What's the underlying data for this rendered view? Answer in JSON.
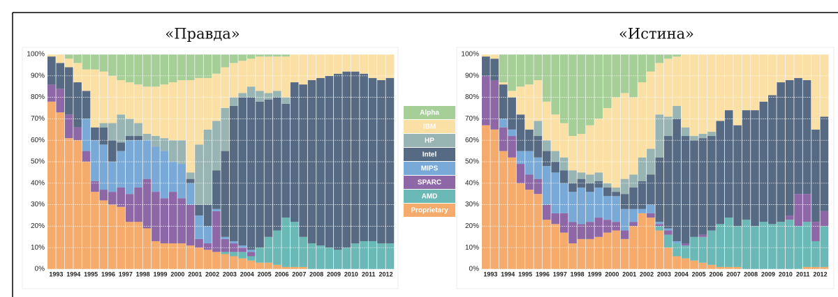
{
  "chart_data": [
    {
      "type": "bar",
      "stacked": true,
      "title": "«Правда»",
      "categories": [
        "1993",
        null,
        "1994",
        null,
        "1995",
        null,
        "1996",
        null,
        "1997",
        null,
        "1998",
        null,
        "1999",
        null,
        "2000",
        null,
        "2001",
        null,
        "2002",
        null,
        "2003",
        null,
        "2004",
        null,
        "2005",
        null,
        "2006",
        null,
        "2007",
        null,
        "2008",
        null,
        "2009",
        null,
        "2010",
        null,
        "2011",
        null,
        "2012",
        null
      ],
      "ylim": [
        0,
        100
      ],
      "yticks": [
        {
          "value": 0,
          "label": "0%"
        },
        {
          "value": 10,
          "label": "10%"
        },
        {
          "value": 20,
          "label": "20%"
        },
        {
          "value": 30,
          "label": "30%"
        },
        {
          "value": 40,
          "label": "40%"
        },
        {
          "value": 50,
          "label": "50%"
        },
        {
          "value": 60,
          "label": "60%"
        },
        {
          "value": 70,
          "label": "70%"
        },
        {
          "value": 80,
          "label": "80%"
        },
        {
          "value": 90,
          "label": "90%"
        },
        {
          "value": 100,
          "label": "100%"
        }
      ],
      "grid": true,
      "series": [
        {
          "name": "Proprietary",
          "color": "#f5ab6c",
          "values": [
            78,
            73,
            61,
            60,
            50,
            36,
            32,
            30,
            29,
            22,
            22,
            19,
            13,
            12,
            12,
            12,
            11,
            10,
            9,
            8,
            7,
            6,
            5,
            4,
            3,
            3,
            2,
            1,
            1,
            1,
            0,
            0,
            0,
            0,
            0,
            0,
            0,
            0,
            0,
            0
          ]
        },
        {
          "name": "AMD",
          "color": "#6ab9b6",
          "values": [
            0,
            0,
            0,
            0,
            0,
            0,
            0,
            0,
            0,
            0,
            0,
            0,
            0,
            0,
            0,
            0,
            0,
            0,
            0,
            0,
            1,
            2,
            3,
            2,
            7,
            12,
            16,
            23,
            21,
            14,
            12,
            11,
            10,
            9,
            10,
            12,
            13,
            13,
            12,
            12
          ]
        },
        {
          "name": "SPARC",
          "color": "#8e68a6",
          "values": [
            8,
            11,
            11,
            6,
            5,
            5,
            5,
            6,
            9,
            13,
            16,
            23,
            23,
            21,
            24,
            21,
            19,
            4,
            3,
            19,
            6,
            4,
            2,
            2,
            0,
            0,
            0,
            0,
            0,
            0,
            0,
            0,
            0,
            0,
            0,
            0,
            0,
            0,
            0,
            0
          ]
        },
        {
          "name": "MIPS",
          "color": "#79a9d6",
          "values": [
            0,
            0,
            0,
            0,
            15,
            19,
            21,
            14,
            17,
            25,
            22,
            18,
            21,
            22,
            14,
            16,
            10,
            11,
            8,
            1,
            1,
            1,
            1,
            1,
            0,
            0,
            0,
            0,
            0,
            0,
            0,
            0,
            0,
            0,
            0,
            0,
            0,
            0,
            0,
            0
          ]
        },
        {
          "name": "Intel",
          "color": "#566b83",
          "values": [
            13,
            12,
            22,
            21,
            13,
            6,
            8,
            10,
            4,
            2,
            2,
            0,
            0,
            0,
            0,
            0,
            2,
            5,
            10,
            18,
            40,
            63,
            69,
            71,
            68,
            64,
            62,
            53,
            65,
            71,
            76,
            78,
            80,
            82,
            82,
            80,
            78,
            76,
            76,
            77
          ]
        },
        {
          "name": "HP",
          "color": "#98b5b3",
          "values": [
            0,
            0,
            0,
            0,
            0,
            0,
            2,
            8,
            13,
            8,
            6,
            3,
            5,
            6,
            10,
            11,
            3,
            28,
            35,
            23,
            20,
            4,
            2,
            5,
            5,
            3,
            3,
            3,
            0,
            0,
            0,
            0,
            0,
            0,
            0,
            0,
            0,
            0,
            0,
            0
          ]
        },
        {
          "name": "IBM",
          "color": "#fbe0a5",
          "values": [
            1,
            4,
            4,
            9,
            10,
            27,
            24,
            22,
            16,
            17,
            18,
            22,
            23,
            25,
            27,
            28,
            43,
            31,
            24,
            22,
            19,
            16,
            15,
            13,
            16,
            17,
            16,
            19,
            13,
            14,
            12,
            11,
            10,
            9,
            8,
            8,
            9,
            11,
            12,
            11
          ]
        },
        {
          "name": "Alpha",
          "color": "#a6cf98",
          "values": [
            0,
            0,
            2,
            4,
            7,
            7,
            8,
            10,
            12,
            13,
            14,
            15,
            15,
            14,
            13,
            12,
            12,
            11,
            11,
            9,
            6,
            4,
            3,
            2,
            1,
            1,
            1,
            1,
            0,
            0,
            0,
            0,
            0,
            0,
            0,
            0,
            0,
            0,
            0,
            0
          ]
        }
      ]
    },
    {
      "type": "bar",
      "stacked": true,
      "title": "«Истина»",
      "categories": [
        "1993",
        null,
        "1994",
        null,
        "1995",
        null,
        "1996",
        null,
        "1997",
        null,
        "1998",
        null,
        "1999",
        null,
        "2000",
        null,
        "2001",
        null,
        "2002",
        null,
        "2003",
        null,
        "2004",
        null,
        "2005",
        null,
        "2006",
        null,
        "2007",
        null,
        "2008",
        null,
        "2009",
        null,
        "2010",
        null,
        "2011",
        null,
        "2012",
        null
      ],
      "ylim": [
        0,
        100
      ],
      "yticks": [
        {
          "value": 0,
          "label": "0%"
        },
        {
          "value": 10,
          "label": "10%"
        },
        {
          "value": 20,
          "label": "20%"
        },
        {
          "value": 30,
          "label": "30%"
        },
        {
          "value": 40,
          "label": "40%"
        },
        {
          "value": 50,
          "label": "50%"
        },
        {
          "value": 60,
          "label": "60%"
        },
        {
          "value": 70,
          "label": "70%"
        },
        {
          "value": 80,
          "label": "80%"
        },
        {
          "value": 90,
          "label": "90%"
        },
        {
          "value": 100,
          "label": "100%"
        }
      ],
      "grid": true,
      "series": [
        {
          "name": "Proprietary",
          "color": "#f5ab6c",
          "values": [
            67,
            65,
            55,
            52,
            40,
            37,
            35,
            23,
            21,
            17,
            12,
            14,
            14,
            15,
            17,
            18,
            14,
            20,
            26,
            24,
            18,
            10,
            6,
            5,
            4,
            3,
            2,
            1,
            1,
            1,
            0,
            0,
            0,
            0,
            0,
            0,
            0,
            1,
            1,
            1
          ]
        },
        {
          "name": "AMD",
          "color": "#6ab9b6",
          "values": [
            0,
            0,
            0,
            0,
            0,
            0,
            0,
            0,
            0,
            0,
            0,
            0,
            0,
            0,
            0,
            0,
            0,
            0,
            0,
            0,
            2,
            6,
            6,
            6,
            11,
            12,
            16,
            20,
            23,
            19,
            23,
            20,
            22,
            21,
            22,
            23,
            20,
            21,
            12,
            19
          ]
        },
        {
          "name": "SPARC",
          "color": "#8e68a6",
          "values": [
            23,
            23,
            11,
            10,
            9,
            7,
            7,
            7,
            5,
            9,
            10,
            7,
            8,
            9,
            6,
            4,
            4,
            2,
            0,
            2,
            1,
            2,
            0,
            1,
            0,
            1,
            0,
            0,
            0,
            0,
            0,
            0,
            0,
            0,
            0,
            2,
            15,
            13,
            9,
            7
          ]
        },
        {
          "name": "MIPS",
          "color": "#79a9d6",
          "values": [
            0,
            0,
            4,
            3,
            6,
            11,
            10,
            18,
            19,
            14,
            14,
            17,
            14,
            14,
            11,
            12,
            10,
            6,
            2,
            4,
            1,
            1,
            1,
            0,
            0,
            0,
            0,
            0,
            0,
            0,
            0,
            0,
            0,
            0,
            0,
            0,
            0,
            0,
            0,
            0
          ]
        },
        {
          "name": "Intel",
          "color": "#566b83",
          "values": [
            9,
            10,
            16,
            15,
            17,
            10,
            10,
            7,
            5,
            6,
            4,
            4,
            4,
            3,
            4,
            2,
            7,
            10,
            13,
            14,
            30,
            43,
            57,
            50,
            45,
            45,
            44,
            48,
            50,
            47,
            51,
            54,
            56,
            60,
            65,
            63,
            54,
            53,
            43,
            44
          ]
        },
        {
          "name": "HP",
          "color": "#98b5b3",
          "values": [
            0,
            0,
            0,
            0,
            0,
            0,
            7,
            5,
            5,
            6,
            6,
            3,
            4,
            4,
            2,
            2,
            7,
            6,
            11,
            12,
            20,
            9,
            6,
            4,
            2,
            2,
            2,
            0,
            0,
            0,
            0,
            0,
            0,
            0,
            0,
            0,
            0,
            0,
            0,
            0
          ]
        },
        {
          "name": "IBM",
          "color": "#fbe0a5",
          "values": [
            1,
            2,
            1,
            3,
            13,
            21,
            19,
            18,
            17,
            16,
            16,
            18,
            23,
            25,
            35,
            42,
            40,
            36,
            35,
            36,
            24,
            27,
            23,
            34,
            38,
            37,
            36,
            31,
            26,
            33,
            26,
            26,
            22,
            19,
            13,
            12,
            11,
            12,
            35,
            29
          ]
        },
        {
          "name": "Alpha",
          "color": "#a6cf98",
          "values": [
            0,
            0,
            13,
            17,
            15,
            14,
            12,
            22,
            28,
            32,
            38,
            37,
            33,
            30,
            25,
            20,
            18,
            20,
            13,
            8,
            4,
            2,
            1,
            0,
            0,
            0,
            0,
            0,
            0,
            0,
            0,
            0,
            0,
            0,
            0,
            0,
            0,
            0,
            0,
            0
          ]
        }
      ]
    }
  ]
}
